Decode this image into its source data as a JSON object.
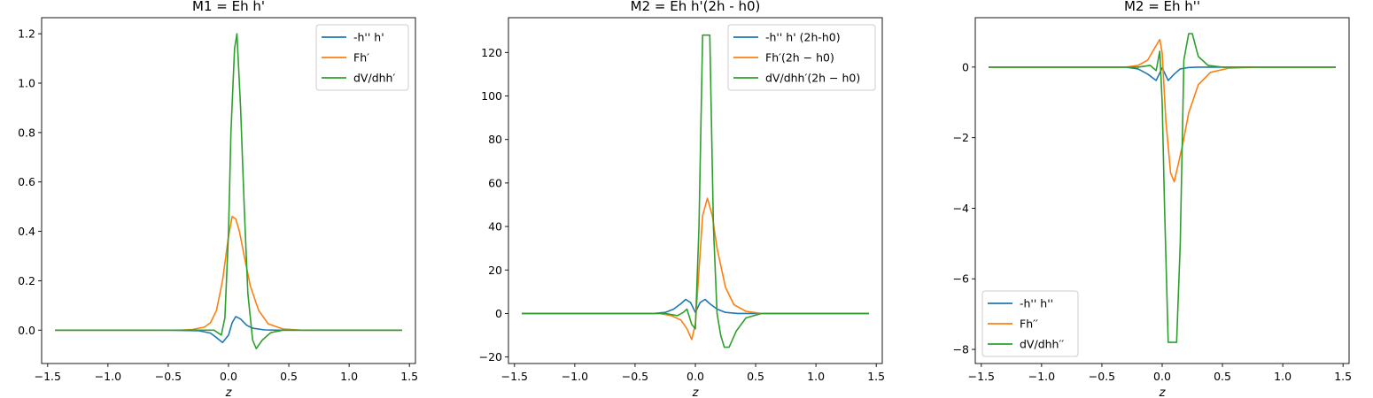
{
  "chart_data": [
    {
      "type": "line",
      "title": "M1 = Eh h'",
      "xlabel": "z",
      "ylabel": "",
      "xlim": [
        -1.55,
        1.55
      ],
      "ylim": [
        -0.135,
        1.265
      ],
      "xticks": [
        -1.5,
        -1.0,
        -0.5,
        0.0,
        0.5,
        1.0,
        1.5
      ],
      "xtick_labels": [
        "−1.5",
        "−1.0",
        "−0.5",
        "0.0",
        "0.5",
        "1.0",
        "1.5"
      ],
      "yticks": [
        0.0,
        0.2,
        0.4,
        0.6,
        0.8,
        1.0,
        1.2
      ],
      "ytick_labels": [
        "0.0",
        "0.2",
        "0.4",
        "0.6",
        "0.8",
        "1.0",
        "1.2"
      ],
      "legend_position": "top-right",
      "series": [
        {
          "name": "-h'' h'",
          "color": "#1f77b4",
          "x": [
            -1.44,
            -0.5,
            -0.25,
            -0.15,
            -0.1,
            -0.05,
            0.0,
            0.03,
            0.06,
            0.1,
            0.15,
            0.2,
            0.3,
            0.4,
            1.44
          ],
          "y": [
            0,
            0,
            -0.002,
            -0.012,
            -0.03,
            -0.05,
            -0.02,
            0.03,
            0.055,
            0.045,
            0.02,
            0.008,
            0.001,
            0,
            0
          ]
        },
        {
          "name": "Fh′",
          "color": "#ff7f0e",
          "x": [
            -1.44,
            -0.4,
            -0.3,
            -0.2,
            -0.15,
            -0.1,
            -0.05,
            0.0,
            0.03,
            0.06,
            0.09,
            0.13,
            0.18,
            0.25,
            0.33,
            0.45,
            0.6,
            1.44
          ],
          "y": [
            0,
            0,
            0.003,
            0.012,
            0.03,
            0.08,
            0.2,
            0.38,
            0.46,
            0.45,
            0.4,
            0.3,
            0.18,
            0.08,
            0.025,
            0.005,
            0,
            0
          ]
        },
        {
          "name": "dV/dhh′",
          "color": "#2ca02c",
          "x": [
            -1.44,
            -0.2,
            -0.12,
            -0.06,
            -0.03,
            0.0,
            0.02,
            0.05,
            0.07,
            0.1,
            0.13,
            0.16,
            0.2,
            0.23,
            0.28,
            0.35,
            0.45,
            1.44
          ],
          "y": [
            0,
            0,
            0,
            -0.02,
            0.05,
            0.4,
            0.8,
            1.14,
            1.2,
            0.9,
            0.5,
            0.15,
            -0.04,
            -0.075,
            -0.04,
            -0.01,
            0,
            0
          ]
        }
      ]
    },
    {
      "type": "line",
      "title": "M2 = Eh h'(2h - h0)",
      "xlabel": "z",
      "ylabel": "",
      "xlim": [
        -1.55,
        1.55
      ],
      "ylim": [
        -23,
        136
      ],
      "xticks": [
        -1.5,
        -1.0,
        -0.5,
        0.0,
        0.5,
        1.0,
        1.5
      ],
      "xtick_labels": [
        "−1.5",
        "−1.0",
        "−0.5",
        "0.0",
        "0.5",
        "1.0",
        "1.5"
      ],
      "yticks": [
        -20,
        0,
        20,
        40,
        60,
        80,
        100,
        120
      ],
      "ytick_labels": [
        "−20",
        "0",
        "20",
        "40",
        "60",
        "80",
        "100",
        "120"
      ],
      "legend_position": "top-right",
      "series": [
        {
          "name": "-h'' h' (2h-h0)",
          "color": "#1f77b4",
          "x": [
            -1.44,
            -0.35,
            -0.25,
            -0.18,
            -0.12,
            -0.08,
            -0.04,
            0.0,
            0.04,
            0.08,
            0.12,
            0.18,
            0.25,
            0.35,
            1.44
          ],
          "y": [
            0,
            0,
            0.5,
            2,
            4.5,
            6.5,
            5,
            0.5,
            5,
            6.5,
            4.5,
            2,
            0.5,
            0,
            0
          ]
        },
        {
          "name": "Fh′(2h − h0)",
          "color": "#ff7f0e",
          "x": [
            -1.44,
            -0.3,
            -0.2,
            -0.12,
            -0.07,
            -0.03,
            0.0,
            0.03,
            0.06,
            0.1,
            0.14,
            0.18,
            0.25,
            0.32,
            0.42,
            0.55,
            1.44
          ],
          "y": [
            0,
            0,
            -1,
            -3,
            -7,
            -12,
            -5,
            20,
            45,
            53,
            45,
            30,
            12,
            4,
            1,
            0,
            0
          ]
        },
        {
          "name": "dV/dhh′(2h − h0)",
          "color": "#2ca02c",
          "x": [
            -1.44,
            -0.25,
            -0.15,
            -0.1,
            -0.07,
            -0.03,
            0.0,
            0.03,
            0.06,
            0.08,
            0.12,
            0.15,
            0.18,
            0.21,
            0.24,
            0.28,
            0.34,
            0.42,
            0.55,
            1.44
          ],
          "y": [
            0,
            0,
            -1,
            0.5,
            2,
            -5,
            -7,
            40,
            128,
            128,
            128,
            40,
            0,
            -10,
            -15.5,
            -15.5,
            -8,
            -2,
            0,
            0
          ]
        }
      ]
    },
    {
      "type": "line",
      "title": "M2 = Eh h''",
      "xlabel": "z",
      "ylabel": "",
      "xlim": [
        -1.55,
        1.55
      ],
      "ylim": [
        -8.4,
        1.4
      ],
      "xticks": [
        -1.5,
        -1.0,
        -0.5,
        0.0,
        0.5,
        1.0,
        1.5
      ],
      "xtick_labels": [
        "−1.5",
        "−1.0",
        "−0.5",
        "0.0",
        "0.5",
        "1.0",
        "1.5"
      ],
      "yticks": [
        -8,
        -6,
        -4,
        -2,
        0
      ],
      "ytick_labels": [
        "−8",
        "−6",
        "−4",
        "−2",
        "0"
      ],
      "legend_position": "bottom-left",
      "series": [
        {
          "name": "-h'' h''",
          "color": "#1f77b4",
          "x": [
            -1.44,
            -0.3,
            -0.2,
            -0.12,
            -0.05,
            0.0,
            0.05,
            0.1,
            0.15,
            0.22,
            0.3,
            1.44
          ],
          "y": [
            0,
            0,
            -0.05,
            -0.2,
            -0.38,
            -0.02,
            -0.38,
            -0.2,
            -0.05,
            -0.01,
            0,
            0
          ]
        },
        {
          "name": "Fh′′",
          "color": "#ff7f0e",
          "x": [
            -1.44,
            -0.3,
            -0.2,
            -0.12,
            -0.06,
            -0.02,
            0.0,
            0.03,
            0.07,
            0.1,
            0.13,
            0.17,
            0.22,
            0.3,
            0.4,
            0.55,
            0.8,
            1.44
          ],
          "y": [
            0,
            0,
            0.05,
            0.2,
            0.55,
            0.78,
            0.4,
            -1.5,
            -3.0,
            -3.25,
            -2.8,
            -2.2,
            -1.3,
            -0.5,
            -0.15,
            -0.03,
            0,
            0
          ]
        },
        {
          "name": "dV/dhh′′",
          "color": "#2ca02c",
          "x": [
            -1.44,
            -0.2,
            -0.1,
            -0.05,
            -0.02,
            0.0,
            0.02,
            0.05,
            0.07,
            0.12,
            0.15,
            0.18,
            0.22,
            0.25,
            0.3,
            0.38,
            0.5,
            1.44
          ],
          "y": [
            0,
            0,
            0.05,
            -0.1,
            0.45,
            -1.0,
            -4.0,
            -7.8,
            -7.8,
            -7.8,
            -5.0,
            0.2,
            0.95,
            0.95,
            0.3,
            0.05,
            0,
            0
          ]
        }
      ]
    }
  ]
}
